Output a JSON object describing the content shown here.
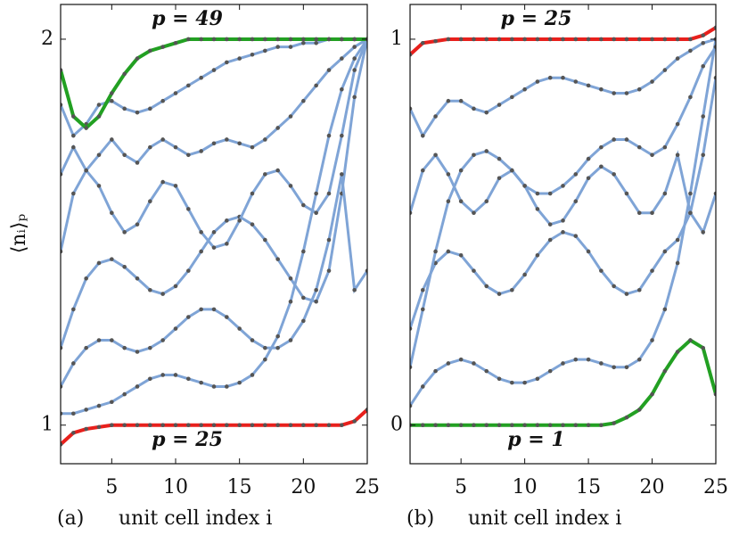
{
  "chart_data": [
    {
      "type": "line",
      "label": "(a)",
      "xlabel": "unit cell index i",
      "ylabel": "⟨nᵢ⟩ₚ",
      "x": [
        1,
        2,
        3,
        4,
        5,
        6,
        7,
        8,
        9,
        10,
        11,
        12,
        13,
        14,
        15,
        16,
        17,
        18,
        19,
        20,
        21,
        22,
        23,
        24,
        25
      ],
      "xlim": [
        1,
        25
      ],
      "xticks": [
        5,
        10,
        15,
        20,
        25
      ],
      "ylim": [
        0.9,
        2.09
      ],
      "yticks": [
        1,
        2
      ],
      "series": [
        {
          "color": "#7fa4d6",
          "values": [
            1.03,
            1.03,
            1.04,
            1.05,
            1.06,
            1.08,
            1.1,
            1.12,
            1.13,
            1.13,
            1.12,
            1.11,
            1.1,
            1.1,
            1.11,
            1.13,
            1.17,
            1.23,
            1.32,
            1.45,
            1.6,
            1.75,
            1.87,
            1.95,
            2.0
          ]
        },
        {
          "color": "#7fa4d6",
          "values": [
            1.2,
            1.3,
            1.38,
            1.42,
            1.43,
            1.41,
            1.38,
            1.35,
            1.34,
            1.36,
            1.4,
            1.45,
            1.5,
            1.53,
            1.54,
            1.52,
            1.48,
            1.43,
            1.38,
            1.33,
            1.32,
            1.4,
            1.6,
            1.85,
            2.0
          ]
        },
        {
          "color": "#7fa4d6",
          "values": [
            1.45,
            1.6,
            1.66,
            1.62,
            1.55,
            1.5,
            1.52,
            1.58,
            1.63,
            1.62,
            1.56,
            1.5,
            1.46,
            1.47,
            1.53,
            1.6,
            1.65,
            1.66,
            1.62,
            1.57,
            1.55,
            1.6,
            1.75,
            1.92,
            2.0
          ]
        },
        {
          "color": "#7fa4d6",
          "values": [
            1.83,
            1.75,
            1.78,
            1.83,
            1.84,
            1.82,
            1.81,
            1.82,
            1.84,
            1.86,
            1.88,
            1.9,
            1.92,
            1.94,
            1.95,
            1.96,
            1.97,
            1.98,
            1.98,
            1.99,
            1.99,
            2.0,
            2.0,
            2.0,
            2.0
          ]
        },
        {
          "color": "#7fa4d6",
          "values": [
            1.65,
            1.72,
            1.66,
            1.7,
            1.74,
            1.7,
            1.68,
            1.72,
            1.74,
            1.72,
            1.7,
            1.71,
            1.73,
            1.74,
            1.73,
            1.72,
            1.74,
            1.77,
            1.8,
            1.84,
            1.88,
            1.92,
            1.95,
            1.98,
            2.0
          ]
        },
        {
          "color": "#7fa4d6",
          "values": [
            1.1,
            1.16,
            1.2,
            1.22,
            1.22,
            1.2,
            1.19,
            1.2,
            1.22,
            1.25,
            1.28,
            1.3,
            1.3,
            1.28,
            1.25,
            1.22,
            1.2,
            1.2,
            1.22,
            1.27,
            1.35,
            1.48,
            1.65,
            1.35,
            1.4
          ]
        },
        {
          "color": "#22a022",
          "values": [
            1.92,
            1.8,
            1.77,
            1.8,
            1.86,
            1.91,
            1.95,
            1.97,
            1.98,
            1.99,
            2.0,
            2.0,
            2.0,
            2.0,
            2.0,
            2.0,
            2.0,
            2.0,
            2.0,
            2.0,
            2.0,
            2.0,
            2.0,
            2.0,
            2.0
          ]
        },
        {
          "color": "#e8201c",
          "values": [
            0.95,
            0.98,
            0.99,
            0.995,
            1.0,
            1.0,
            1.0,
            1.0,
            1.0,
            1.0,
            1.0,
            1.0,
            1.0,
            1.0,
            1.0,
            1.0,
            1.0,
            1.0,
            1.0,
            1.0,
            1.0,
            1.0,
            1.0,
            1.01,
            1.04
          ]
        }
      ],
      "annotations": [
        {
          "text": "p = 49",
          "color": "#22a022"
        },
        {
          "text": "p = 25",
          "color": "#e8201c"
        }
      ]
    },
    {
      "type": "line",
      "label": "(b)",
      "xlabel": "unit cell index i",
      "x": [
        1,
        2,
        3,
        4,
        5,
        6,
        7,
        8,
        9,
        10,
        11,
        12,
        13,
        14,
        15,
        16,
        17,
        18,
        19,
        20,
        21,
        22,
        23,
        24,
        25
      ],
      "xlim": [
        1,
        25
      ],
      "xticks": [
        5,
        10,
        15,
        20,
        25
      ],
      "ylim": [
        -0.1,
        1.09
      ],
      "yticks": [
        0,
        1
      ],
      "series": [
        {
          "color": "#7fa4d6",
          "values": [
            0.05,
            0.1,
            0.14,
            0.16,
            0.17,
            0.16,
            0.14,
            0.12,
            0.11,
            0.11,
            0.12,
            0.14,
            0.16,
            0.17,
            0.17,
            0.16,
            0.15,
            0.15,
            0.17,
            0.22,
            0.3,
            0.42,
            0.6,
            0.8,
            1.0
          ]
        },
        {
          "color": "#7fa4d6",
          "values": [
            0.25,
            0.35,
            0.42,
            0.45,
            0.44,
            0.4,
            0.36,
            0.34,
            0.35,
            0.39,
            0.44,
            0.48,
            0.5,
            0.49,
            0.45,
            0.4,
            0.36,
            0.34,
            0.35,
            0.4,
            0.45,
            0.48,
            0.55,
            0.7,
            0.9
          ]
        },
        {
          "color": "#7fa4d6",
          "values": [
            0.55,
            0.66,
            0.7,
            0.65,
            0.58,
            0.55,
            0.58,
            0.64,
            0.66,
            0.62,
            0.56,
            0.52,
            0.53,
            0.58,
            0.64,
            0.67,
            0.65,
            0.6,
            0.55,
            0.55,
            0.6,
            0.7,
            0.55,
            0.5,
            0.6
          ]
        },
        {
          "color": "#7fa4d6",
          "values": [
            0.82,
            0.75,
            0.8,
            0.84,
            0.84,
            0.82,
            0.81,
            0.83,
            0.85,
            0.87,
            0.89,
            0.9,
            0.9,
            0.89,
            0.88,
            0.87,
            0.86,
            0.86,
            0.87,
            0.89,
            0.92,
            0.95,
            0.97,
            0.99,
            1.0
          ]
        },
        {
          "color": "#7fa4d6",
          "values": [
            0.15,
            0.3,
            0.45,
            0.58,
            0.66,
            0.7,
            0.71,
            0.69,
            0.66,
            0.62,
            0.6,
            0.6,
            0.62,
            0.65,
            0.69,
            0.72,
            0.74,
            0.74,
            0.72,
            0.7,
            0.72,
            0.78,
            0.85,
            0.93,
            0.98
          ]
        },
        {
          "color": "#22a022",
          "values": [
            0.0,
            0.0,
            0.0,
            0.0,
            0.0,
            0.0,
            0.0,
            0.0,
            0.0,
            0.0,
            0.0,
            0.0,
            0.0,
            0.0,
            0.0,
            0.0,
            0.005,
            0.02,
            0.04,
            0.08,
            0.14,
            0.19,
            0.22,
            0.2,
            0.08
          ]
        },
        {
          "color": "#e8201c",
          "values": [
            0.96,
            0.99,
            0.995,
            1.0,
            1.0,
            1.0,
            1.0,
            1.0,
            1.0,
            1.0,
            1.0,
            1.0,
            1.0,
            1.0,
            1.0,
            1.0,
            1.0,
            1.0,
            1.0,
            1.0,
            1.0,
            1.0,
            1.0,
            1.01,
            1.03
          ]
        }
      ],
      "annotations": [
        {
          "text": "p = 25",
          "color": "#e8201c"
        },
        {
          "text": "p = 1",
          "color": "#22a022"
        }
      ]
    }
  ]
}
